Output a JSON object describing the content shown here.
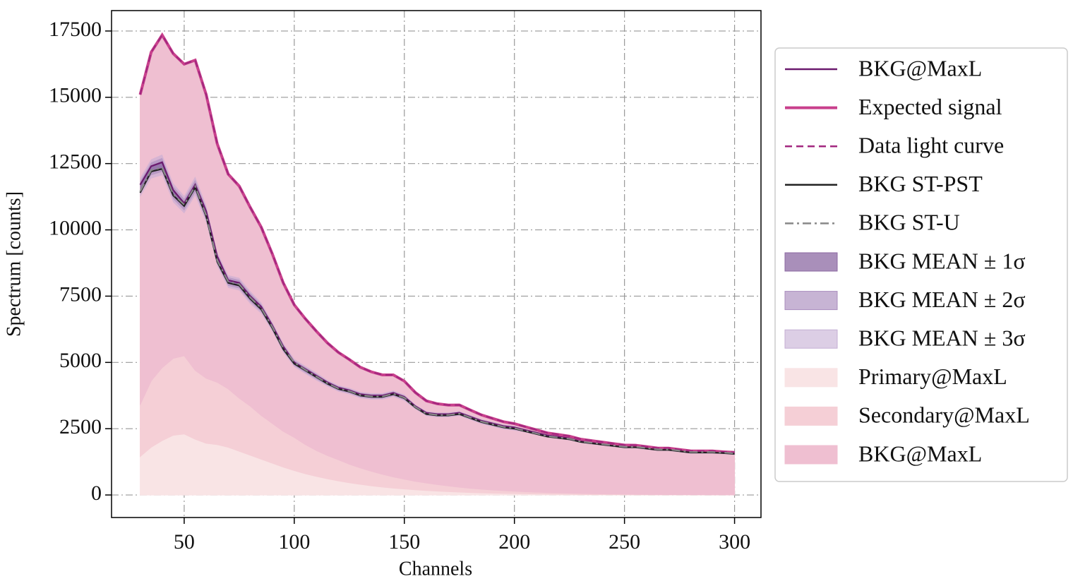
{
  "chart_data": {
    "type": "line",
    "x_label": "Channels",
    "y_label": "Spectrum [counts]",
    "x": [
      30,
      35,
      40,
      45,
      50,
      55,
      60,
      65,
      70,
      75,
      80,
      85,
      90,
      95,
      100,
      105,
      110,
      115,
      120,
      125,
      130,
      135,
      140,
      145,
      150,
      155,
      160,
      165,
      170,
      175,
      180,
      185,
      190,
      195,
      200,
      205,
      210,
      215,
      220,
      225,
      230,
      235,
      240,
      245,
      250,
      255,
      260,
      265,
      270,
      275,
      280,
      285,
      290,
      295,
      300
    ],
    "xlim": [
      17,
      312
    ],
    "xticks": [
      50,
      100,
      150,
      200,
      250,
      300
    ],
    "ylim": [
      -850,
      18270
    ],
    "yticks": [
      0,
      2500,
      5000,
      7500,
      10000,
      12500,
      15000,
      17500
    ],
    "grid": true,
    "legend_position": "outside right",
    "series": [
      {
        "name": "BKG@MaxL",
        "kind": "line",
        "style": "solid",
        "color": "#6b1a6e",
        "values": [
          11700,
          12400,
          12550,
          11500,
          11000,
          11700,
          10700,
          9000,
          8100,
          8000,
          7500,
          7100,
          6400,
          5600,
          5000,
          4750,
          4500,
          4250,
          4050,
          3950,
          3800,
          3750,
          3750,
          3850,
          3700,
          3350,
          3100,
          3050,
          3050,
          3100,
          2950,
          2800,
          2700,
          2600,
          2550,
          2450,
          2350,
          2250,
          2200,
          2150,
          2050,
          2000,
          1950,
          1900,
          1850,
          1850,
          1800,
          1750,
          1750,
          1700,
          1650,
          1650,
          1650,
          1620,
          1600
        ]
      },
      {
        "name": "Expected signal",
        "kind": "line",
        "style": "solid",
        "color": "#c8408c",
        "values": [
          15100,
          16700,
          17350,
          16650,
          16250,
          16400,
          15100,
          13250,
          12100,
          11650,
          10850,
          10100,
          9100,
          8000,
          7170,
          6650,
          6180,
          5740,
          5380,
          5110,
          4820,
          4645,
          4530,
          4530,
          4295,
          3865,
          3550,
          3440,
          3390,
          3393,
          3203,
          3020,
          2889,
          2764,
          2691,
          2572,
          2456,
          2340,
          2278,
          2218,
          2108,
          2050,
          1993,
          1937,
          1882,
          1877,
          1823,
          1770,
          1767,
          1715,
          1662,
          1661,
          1659,
          1628,
          1606
        ]
      },
      {
        "name": "Data light curve",
        "kind": "line",
        "style": "dashed",
        "color": "#a3277f",
        "values": [
          15100,
          16700,
          17350,
          16650,
          16250,
          16400,
          15100,
          13250,
          12100,
          11650,
          10850,
          10100,
          9100,
          8000,
          7170,
          6650,
          6180,
          5740,
          5380,
          5110,
          4820,
          4645,
          4530,
          4530,
          4295,
          3865,
          3550,
          3440,
          3390,
          3393,
          3203,
          3020,
          2889,
          2764,
          2691,
          2572,
          2456,
          2340,
          2278,
          2218,
          2108,
          2050,
          1993,
          1937,
          1882,
          1877,
          1823,
          1770,
          1767,
          1715,
          1662,
          1661,
          1659,
          1628,
          1606
        ]
      },
      {
        "name": "BKG ST-PST",
        "kind": "line",
        "style": "solid",
        "color": "#222222",
        "values": [
          11400,
          12200,
          12300,
          11300,
          10900,
          11600,
          10500,
          8800,
          8000,
          7900,
          7400,
          7000,
          6300,
          5500,
          4950,
          4700,
          4450,
          4200,
          4000,
          3900,
          3750,
          3700,
          3700,
          3800,
          3650,
          3300,
          3050,
          3000,
          3000,
          3050,
          2900,
          2750,
          2650,
          2550,
          2500,
          2400,
          2300,
          2200,
          2150,
          2100,
          2000,
          1950,
          1900,
          1850,
          1800,
          1800,
          1750,
          1700,
          1700,
          1650,
          1600,
          1600,
          1600,
          1580,
          1550
        ]
      },
      {
        "name": "BKG ST-U",
        "kind": "line",
        "style": "dashdot",
        "color": "#888888",
        "values": [
          11450,
          12250,
          12350,
          11350,
          10950,
          11650,
          10550,
          8850,
          8050,
          7950,
          7450,
          7050,
          6350,
          5550,
          5000,
          4720,
          4470,
          4220,
          4020,
          3920,
          3770,
          3720,
          3720,
          3820,
          3670,
          3320,
          3070,
          3020,
          3020,
          3070,
          2920,
          2770,
          2670,
          2570,
          2520,
          2420,
          2320,
          2220,
          2170,
          2120,
          2020,
          1970,
          1920,
          1870,
          1820,
          1820,
          1770,
          1720,
          1720,
          1670,
          1620,
          1620,
          1620,
          1600,
          1570
        ]
      },
      {
        "name": "BKG MEAN ± 1σ",
        "kind": "band",
        "color": "#8c6aa3",
        "opacity": 0.75,
        "values": [
          11600,
          12300,
          12450,
          11400,
          10950,
          11650,
          10600,
          8900,
          8050,
          7950,
          7450,
          7050,
          6350,
          5550,
          4980,
          4720,
          4470,
          4220,
          4020,
          3920,
          3770,
          3720,
          3720,
          3820,
          3670,
          3320,
          3070,
          3020,
          3020,
          3070,
          2920,
          2770,
          2670,
          2570,
          2520,
          2420,
          2320,
          2220,
          2170,
          2120,
          2020,
          1970,
          1920,
          1870,
          1820,
          1820,
          1770,
          1720,
          1720,
          1670,
          1620,
          1620,
          1620,
          1600,
          1570
        ],
        "errors": [
          120,
          120,
          130,
          120,
          110,
          120,
          110,
          90,
          80,
          80,
          80,
          70,
          60,
          60,
          50,
          50,
          50,
          40,
          40,
          40,
          40,
          40,
          40,
          40,
          40,
          30,
          30,
          30,
          30,
          30,
          30,
          30,
          30,
          30,
          30,
          20,
          20,
          20,
          20,
          20,
          20,
          20,
          20,
          20,
          20,
          20,
          20,
          20,
          20,
          20,
          20,
          20,
          20,
          20,
          20
        ]
      },
      {
        "name": "BKG MEAN ± 2σ",
        "kind": "band",
        "color": "#a98cbd",
        "opacity": 0.65,
        "values": [
          11600,
          12300,
          12450,
          11400,
          10950,
          11650,
          10600,
          8900,
          8050,
          7950,
          7450,
          7050,
          6350,
          5550,
          4980,
          4720,
          4470,
          4220,
          4020,
          3920,
          3770,
          3720,
          3720,
          3820,
          3670,
          3320,
          3070,
          3020,
          3020,
          3070,
          2920,
          2770,
          2670,
          2570,
          2520,
          2420,
          2320,
          2220,
          2170,
          2120,
          2020,
          1970,
          1920,
          1870,
          1820,
          1820,
          1770,
          1720,
          1720,
          1670,
          1620,
          1620,
          1620,
          1600,
          1570
        ],
        "errors": [
          240,
          240,
          260,
          240,
          220,
          240,
          220,
          180,
          160,
          160,
          160,
          140,
          120,
          120,
          100,
          100,
          100,
          80,
          80,
          80,
          80,
          80,
          80,
          80,
          80,
          60,
          60,
          60,
          60,
          60,
          60,
          60,
          60,
          60,
          60,
          40,
          40,
          40,
          40,
          40,
          40,
          40,
          40,
          40,
          40,
          40,
          40,
          40,
          40,
          40,
          40,
          40,
          40,
          40,
          40
        ]
      },
      {
        "name": "BKG MEAN ± 3σ",
        "kind": "band",
        "color": "#c4aed3",
        "opacity": 0.6,
        "values": [
          11600,
          12300,
          12450,
          11400,
          10950,
          11650,
          10600,
          8900,
          8050,
          7950,
          7450,
          7050,
          6350,
          5550,
          4980,
          4720,
          4470,
          4220,
          4020,
          3920,
          3770,
          3720,
          3720,
          3820,
          3670,
          3320,
          3070,
          3020,
          3020,
          3070,
          2920,
          2770,
          2670,
          2570,
          2520,
          2420,
          2320,
          2220,
          2170,
          2120,
          2020,
          1970,
          1920,
          1870,
          1820,
          1820,
          1770,
          1720,
          1720,
          1670,
          1620,
          1620,
          1620,
          1600,
          1570
        ],
        "errors": [
          360,
          360,
          390,
          360,
          330,
          360,
          330,
          270,
          240,
          240,
          240,
          210,
          180,
          180,
          150,
          150,
          150,
          120,
          120,
          120,
          120,
          120,
          120,
          120,
          120,
          90,
          90,
          90,
          90,
          90,
          90,
          90,
          90,
          90,
          90,
          60,
          60,
          60,
          60,
          60,
          60,
          60,
          60,
          60,
          60,
          60,
          60,
          60,
          60,
          60,
          60,
          60,
          60,
          60,
          60
        ]
      },
      {
        "name": "Primary@MaxL",
        "kind": "area",
        "color": "#f9e4e5",
        "values": [
          1450,
          1800,
          2050,
          2250,
          2300,
          2100,
          1950,
          1900,
          1800,
          1650,
          1500,
          1350,
          1200,
          1050,
          920,
          800,
          700,
          610,
          530,
          460,
          400,
          345,
          300,
          260,
          225,
          195,
          170,
          145,
          125,
          108,
          93,
          80,
          69,
          59,
          51,
          44,
          38,
          32,
          28,
          24,
          20,
          17,
          15,
          13,
          11,
          9,
          8,
          7,
          6,
          5,
          4,
          4,
          3,
          3,
          2
        ]
      },
      {
        "name": "Secondary@MaxL",
        "kind": "area",
        "color": "#f5cfd6",
        "values": [
          1950,
          2500,
          2750,
          2900,
          2950,
          2600,
          2450,
          2350,
          2200,
          2000,
          1850,
          1650,
          1500,
          1350,
          1250,
          1100,
          980,
          880,
          800,
          700,
          620,
          550,
          480,
          420,
          370,
          320,
          280,
          245,
          215,
          185,
          160,
          140,
          120,
          105,
          90,
          78,
          68,
          58,
          50,
          44,
          38,
          33,
          28,
          24,
          21,
          18,
          15,
          13,
          11,
          10,
          8,
          7,
          6,
          5,
          4
        ]
      },
      {
        "name": "BKG@MaxL",
        "kind": "area",
        "color": "#efbfd1",
        "values": [
          11700,
          12400,
          12550,
          11500,
          11000,
          11700,
          10700,
          9000,
          8100,
          8000,
          7500,
          7100,
          6400,
          5600,
          5000,
          4750,
          4500,
          4250,
          4050,
          3950,
          3800,
          3750,
          3750,
          3850,
          3700,
          3350,
          3100,
          3050,
          3050,
          3100,
          2950,
          2800,
          2700,
          2600,
          2550,
          2450,
          2350,
          2250,
          2200,
          2150,
          2050,
          2000,
          1950,
          1900,
          1850,
          1850,
          1800,
          1750,
          1750,
          1700,
          1650,
          1650,
          1650,
          1620,
          1600
        ]
      }
    ]
  }
}
